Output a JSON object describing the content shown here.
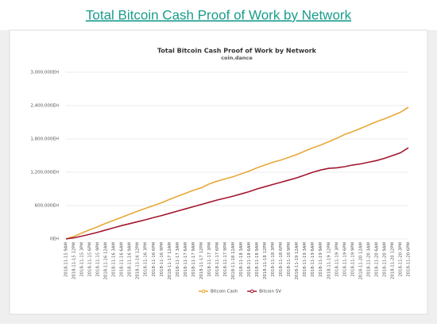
{
  "heading": "Total Bitcoin Cash Proof of Work by Network",
  "chart_data": {
    "type": "line",
    "title": "Total Bitcoin Cash Proof of Work by Network",
    "subtitle": "coin.dance",
    "categories": [
      "2018-11-15 9AM",
      "2018-11-15 12PM",
      "2018-11-15 3PM",
      "2018-11-15 6PM",
      "2018-11-15 9PM",
      "2018-11-16 12AM",
      "2018-11-16 3AM",
      "2018-11-16 6AM",
      "2018-11-16 9AM",
      "2018-11-16 12PM",
      "2018-11-16 3PM",
      "2018-11-16 6PM",
      "2018-11-16 9PM",
      "2018-11-17 12AM",
      "2018-11-17 3AM",
      "2018-11-17 6AM",
      "2018-11-17 9AM",
      "2018-11-17 12PM",
      "2018-11-17 3PM",
      "2018-11-17 6PM",
      "2018-11-17 9PM",
      "2018-11-18 12AM",
      "2018-11-18 3AM",
      "2018-11-18 6AM",
      "2018-11-18 9AM",
      "2018-11-18 12PM",
      "2018-11-18 3PM",
      "2018-11-18 6PM",
      "2018-11-18 9PM",
      "2018-11-19 12AM",
      "2018-11-19 3AM",
      "2018-11-19 6AM",
      "2018-11-19 9AM",
      "2018-11-19 12PM",
      "2018-11-19 3PM",
      "2018-11-19 6PM",
      "2018-11-19 9PM",
      "2018-11-20 12AM",
      "2018-11-20 3AM",
      "2018-11-20 6AM",
      "2018-11-20 9AM",
      "2018-11-20 12PM",
      "2018-11-20 3PM",
      "2018-11-20 6PM"
    ],
    "series": [
      {
        "name": "Bitcoin Cash",
        "color": "#e8a838",
        "values": [
          0,
          45000,
          105000,
          165000,
          220000,
          280000,
          335000,
          390000,
          445000,
          500000,
          550000,
          600000,
          650000,
          710000,
          765000,
          820000,
          875000,
          920000,
          990000,
          1040000,
          1080000,
          1120000,
          1170000,
          1220000,
          1280000,
          1330000,
          1380000,
          1420000,
          1470000,
          1520000,
          1580000,
          1640000,
          1690000,
          1750000,
          1810000,
          1880000,
          1930000,
          1990000,
          2050000,
          2110000,
          2160000,
          2220000,
          2280000,
          2370000
        ]
      },
      {
        "name": "Bitcoin SV",
        "color": "#a3172f",
        "values": [
          0,
          20000,
          50000,
          85000,
          120000,
          160000,
          200000,
          240000,
          275000,
          310000,
          345000,
          385000,
          420000,
          460000,
          500000,
          540000,
          580000,
          620000,
          660000,
          700000,
          735000,
          770000,
          810000,
          850000,
          900000,
          940000,
          980000,
          1020000,
          1060000,
          1100000,
          1150000,
          1200000,
          1240000,
          1270000,
          1280000,
          1300000,
          1330000,
          1350000,
          1380000,
          1410000,
          1450000,
          1500000,
          1550000,
          1640000
        ]
      }
    ],
    "ylim": [
      0,
      3000000
    ],
    "yticks": [
      {
        "value": 0,
        "label": "0EH"
      },
      {
        "value": 600000,
        "label": "600,000EH"
      },
      {
        "value": 1200000,
        "label": "1,200,000EH"
      },
      {
        "value": 1800000,
        "label": "1,800,000EH"
      },
      {
        "value": 2400000,
        "label": "2,400,000EH"
      },
      {
        "value": 3000000,
        "label": "3,000,000EH"
      }
    ],
    "grid": true,
    "legend": "bottom"
  }
}
